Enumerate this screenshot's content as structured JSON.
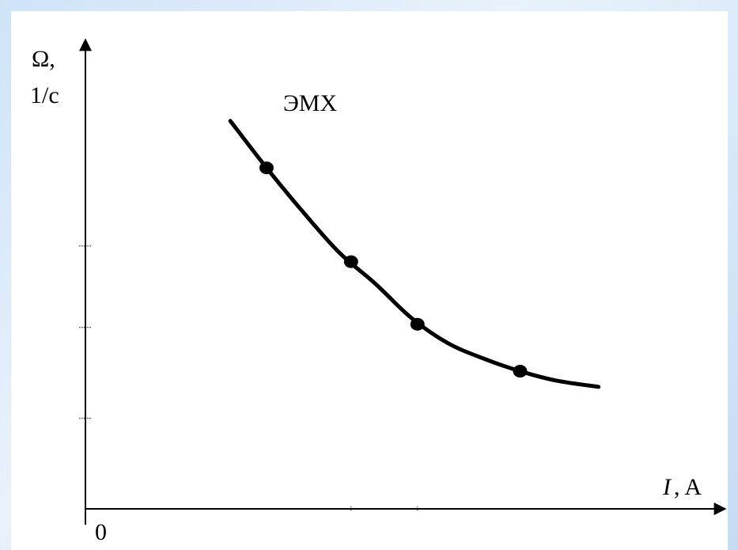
{
  "chart_data": {
    "type": "line",
    "title": "",
    "curve_label": "ЭМХ",
    "ylabel_line1": "Ω,",
    "ylabel_line2": "1/c",
    "xlabel_var": "I",
    "xlabel_unit": ", A",
    "origin_label": "0",
    "grid": false,
    "curve": {
      "x": [
        2.4,
        3.0,
        3.6,
        4.2,
        4.8,
        5.4,
        6.0,
        6.6,
        7.2,
        7.8,
        8.5
      ],
      "y": [
        6.2,
        5.45,
        4.75,
        4.1,
        3.6,
        3.05,
        2.65,
        2.4,
        2.2,
        2.05,
        1.95
      ]
    },
    "points": {
      "x": [
        3.0,
        4.4,
        5.5,
        7.2
      ],
      "y": [
        5.45,
        3.95,
        2.95,
        2.2
      ]
    },
    "x_ticks": [
      4.4,
      5.5
    ],
    "y_ticks": [
      1.45,
      2.9,
      4.2
    ],
    "xlim": [
      0,
      10.6
    ],
    "ylim": [
      0,
      7.5
    ]
  },
  "colors": {
    "axis": "#000000",
    "curve": "#000000",
    "background_edge": "#cfe3f7"
  }
}
